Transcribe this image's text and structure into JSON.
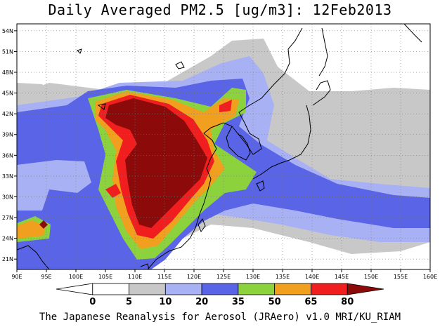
{
  "title": "Daily Averaged PM2.5 [ug/m3]: 12Feb2013",
  "footer": "The Japanese Reanalysis for Aerosol (JRAero) v1.0 MRI/KU_RIAM",
  "map": {
    "projection": "latitude-longitude",
    "lon_range": [
      90,
      160
    ],
    "lat_range": [
      19.5,
      55
    ],
    "lon_ticks": [
      "90E",
      "95E",
      "100E",
      "105E",
      "110E",
      "115E",
      "120E",
      "125E",
      "130E",
      "135E",
      "140E",
      "145E",
      "150E",
      "155E",
      "160E"
    ],
    "lat_ticks": [
      "21N",
      "24N",
      "27N",
      "30N",
      "33N",
      "36N",
      "39N",
      "42N",
      "45N",
      "48N",
      "51N",
      "54N"
    ],
    "lon_tick_values": [
      90,
      95,
      100,
      105,
      110,
      115,
      120,
      125,
      130,
      135,
      140,
      145,
      150,
      155,
      160
    ],
    "lat_tick_values": [
      21,
      24,
      27,
      30,
      33,
      36,
      39,
      42,
      45,
      48,
      51,
      54
    ],
    "gridlines": "dotted",
    "variable": "PM2.5",
    "units": "ug/m3",
    "date": "12Feb2013"
  },
  "colorbar": {
    "levels": [
      "0",
      "5",
      "10",
      "20",
      "35",
      "50",
      "65",
      "80"
    ],
    "colors": [
      "#ffffff",
      "#ffffff",
      "#c8c8c8",
      "#a9b1f5",
      "#5a64e6",
      "#8cd23c",
      "#f0a01e",
      "#f01e1e",
      "#8c0a0a"
    ]
  },
  "legend_colors": {
    "lt5": "#ffffff",
    "5-10": "#c8c8c8",
    "10-20": "#a9b1f5",
    "20-35": "#5a64e6",
    "35-50": "#8cd23c",
    "50-65": "#f0a01e",
    "65-80": "#f01e1e",
    "gt80": "#8c0a0a"
  }
}
